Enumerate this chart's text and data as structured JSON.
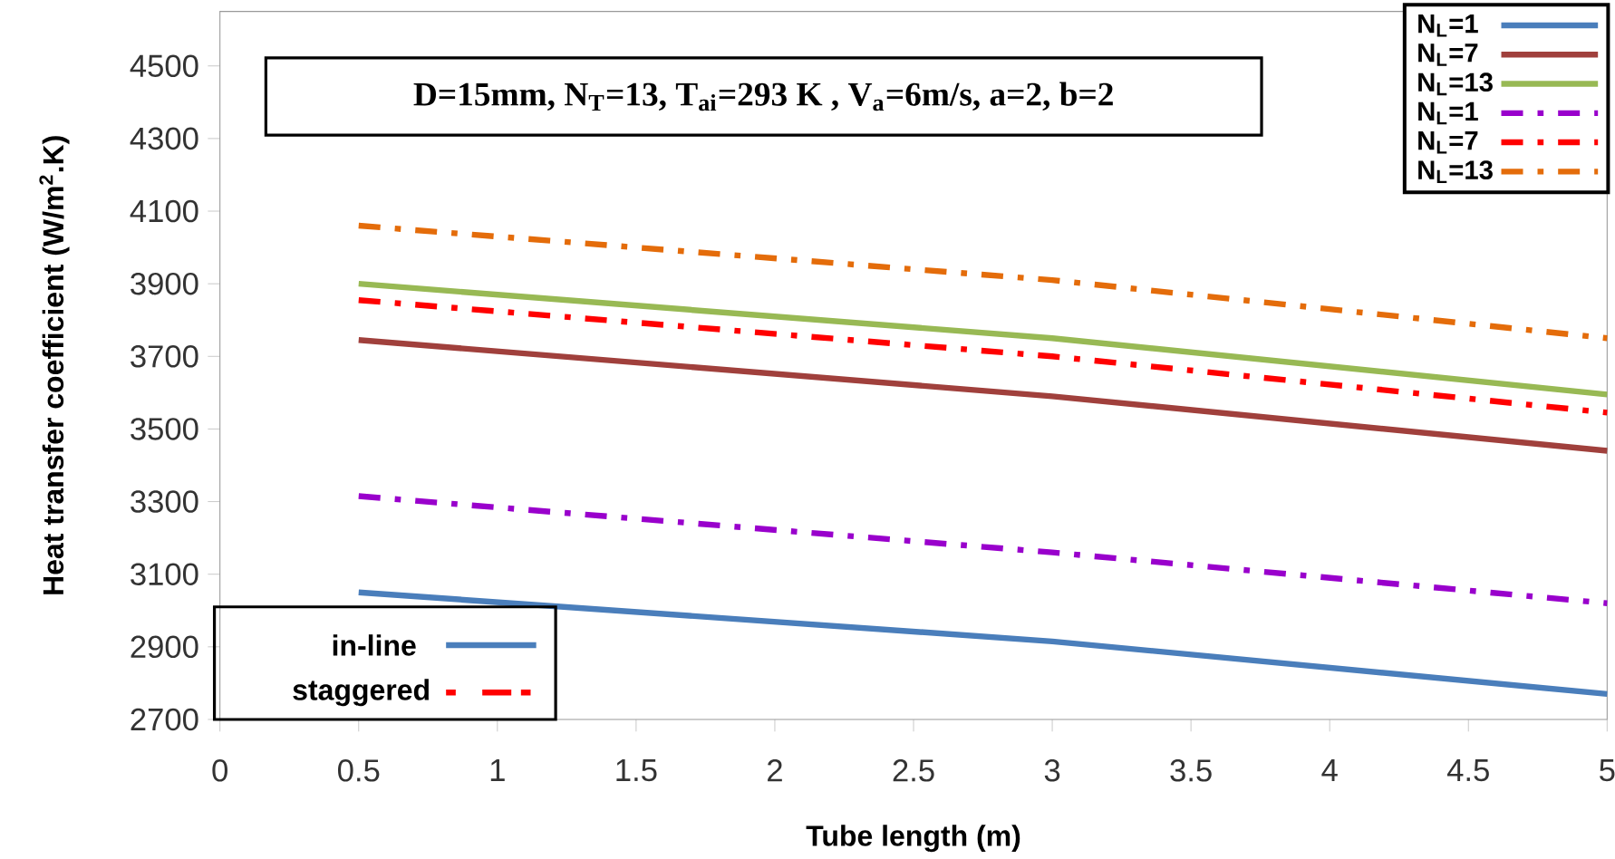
{
  "chart_data": {
    "type": "line",
    "xlabel": "Tube length (m)",
    "ylabel": "Heat transfer coefficient (W/m$^{2}$.K)",
    "xlim": [
      0,
      5
    ],
    "xticks": [
      0,
      0.5,
      1,
      1.5,
      2,
      2.5,
      3,
      3.5,
      4,
      4.5,
      5
    ],
    "ylim": [
      2700,
      4650
    ],
    "yticks": [
      2700,
      2900,
      3100,
      3300,
      3500,
      3700,
      3900,
      4100,
      4300,
      4500
    ],
    "legend": "top right",
    "grid": false,
    "annotations": [
      "D=15mm,  N$_{T}$=13, T$_{ai}$=293 K , V$_{a}$=6m/s, a=2, b=2",
      "in-line",
      "staggered"
    ],
    "series": [
      {
        "name": "N$_{L}$=1",
        "color": "#4a7ebb",
        "line_style": "solid",
        "x": [
          0.5,
          3,
          5
        ],
        "values": [
          3050,
          2915,
          2770
        ]
      },
      {
        "name": "N$_{L}$=7",
        "color": "#a0403c",
        "line_style": "solid",
        "x": [
          0.5,
          3,
          5
        ],
        "values": [
          3745,
          3590,
          3440
        ]
      },
      {
        "name": "N$_{L}$=13",
        "color": "#98b954",
        "line_style": "solid",
        "x": [
          0.5,
          3,
          5
        ],
        "values": [
          3900,
          3750,
          3595
        ]
      },
      {
        "name": "N$_{L}$=1",
        "color": "#9900cc",
        "line_style": "dashdot",
        "x": [
          0.5,
          3,
          5
        ],
        "values": [
          3315,
          3160,
          3020
        ]
      },
      {
        "name": "N$_{L}$=7",
        "color": "#ff0000",
        "line_style": "dashdot",
        "x": [
          0.5,
          3,
          5
        ],
        "values": [
          3855,
          3700,
          3545
        ]
      },
      {
        "name": "N$_{L}$=13",
        "color": "#e46c0a",
        "line_style": "dashdot",
        "x": [
          0.5,
          3,
          5
        ],
        "values": [
          4060,
          3910,
          3750
        ]
      }
    ]
  }
}
